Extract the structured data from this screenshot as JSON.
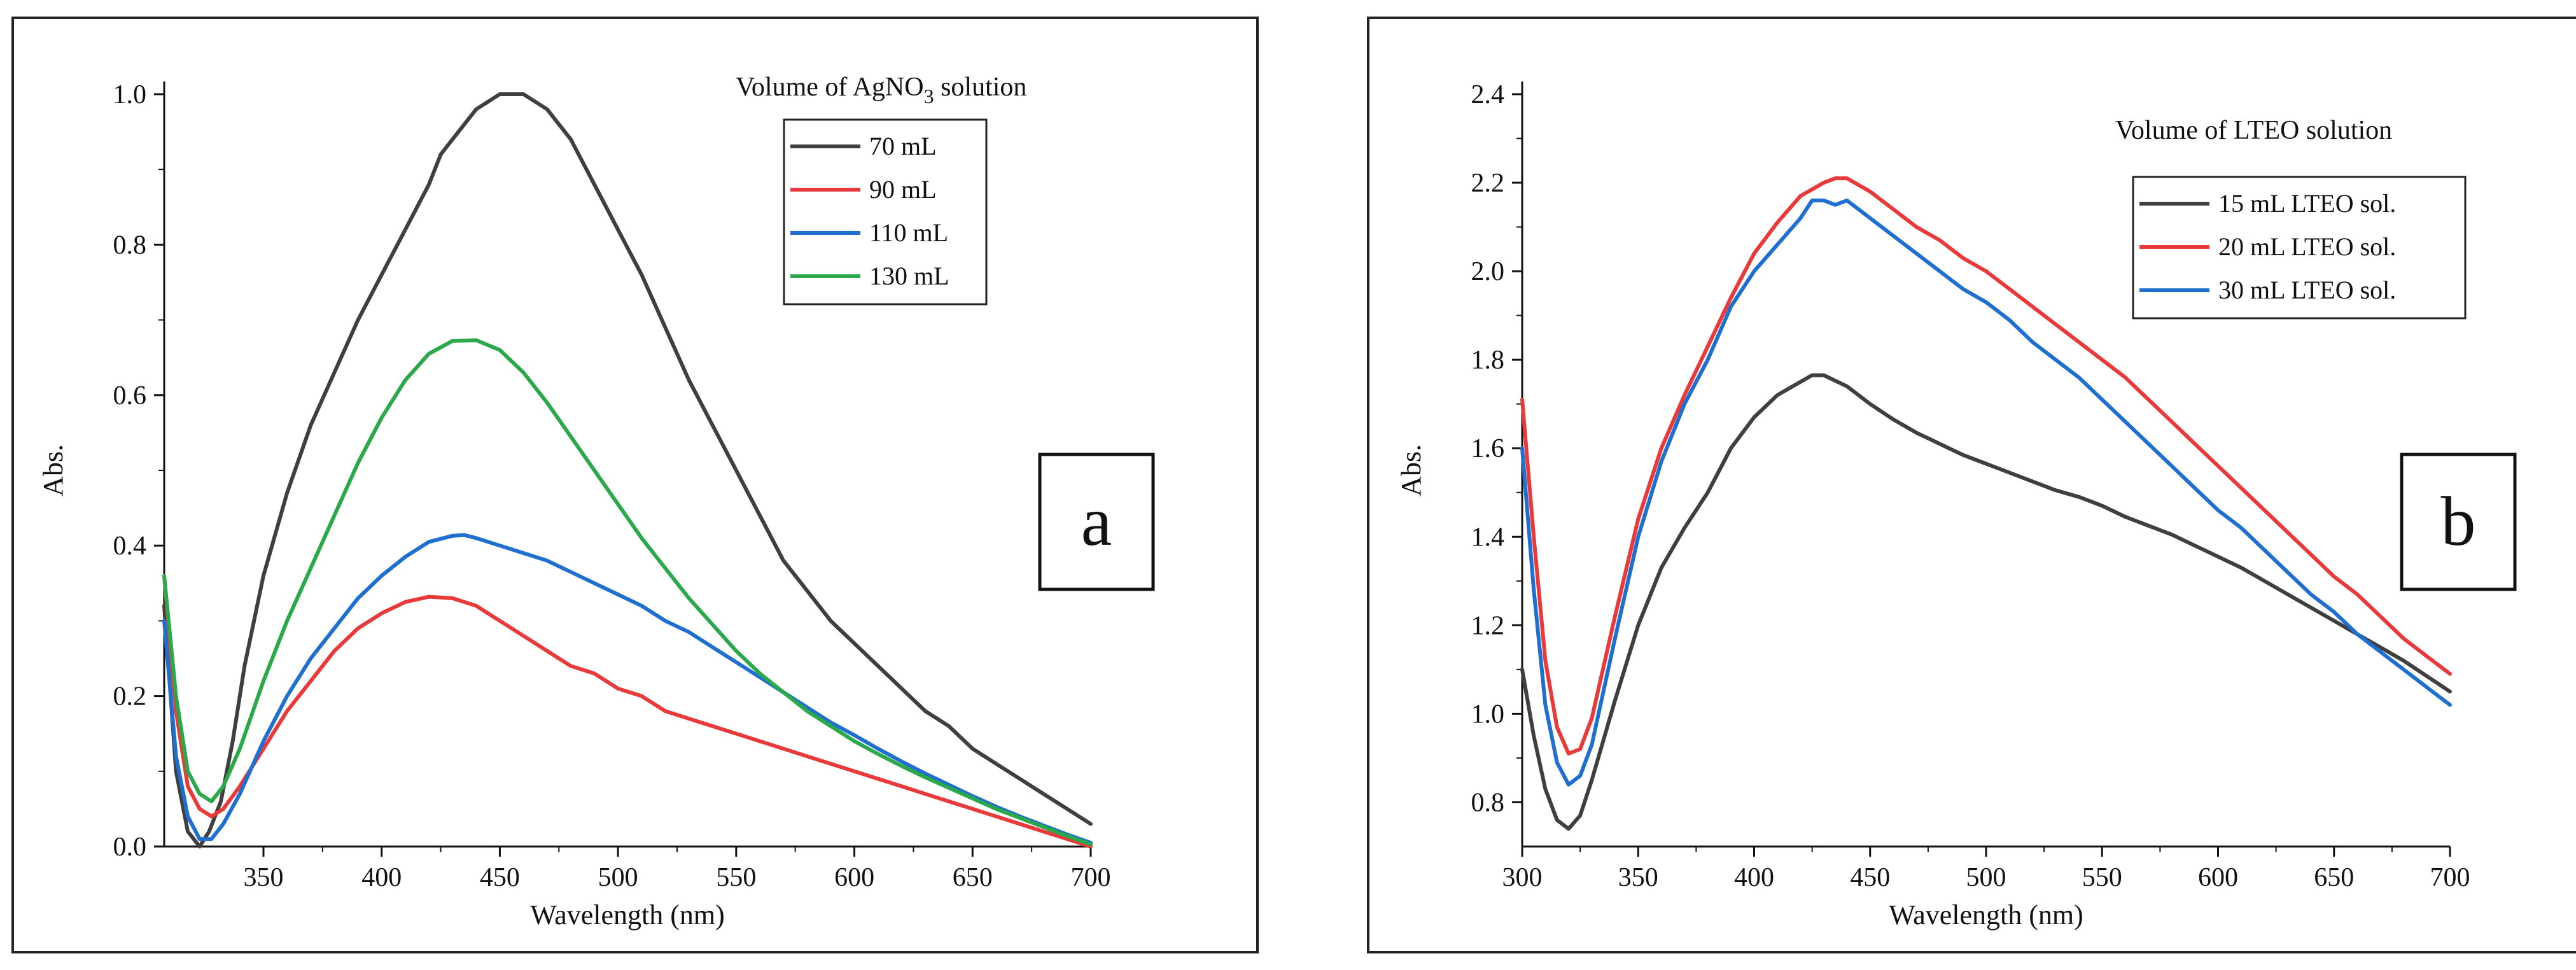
{
  "chart_data": [
    {
      "type": "line",
      "panel_letter": "a",
      "title": "",
      "xlabel": "Wavelength (nm)",
      "ylabel": "Abs.",
      "xlim": [
        308,
        700
      ],
      "ylim": [
        0.0,
        1.0
      ],
      "xticks": [
        350,
        400,
        450,
        500,
        550,
        600,
        650,
        700
      ],
      "yticks": [
        0.0,
        0.2,
        0.4,
        0.6,
        0.8,
        1.0
      ],
      "xtick_labels": [
        "350",
        "400",
        "450",
        "500",
        "550",
        "600",
        "650",
        "700"
      ],
      "ytick_labels": [
        "0.0",
        "0.2",
        "0.4",
        "0.6",
        "0.8",
        "1.0"
      ],
      "legend_title": "Volume of AgNO",
      "legend_title_sub": "3",
      "legend_title_suffix": " solution",
      "legend_position": "top-right",
      "panel_label_position": "right",
      "series": [
        {
          "name": "70 mL",
          "color": "#3f3f3f",
          "x": [
            308,
            313,
            318,
            323,
            327,
            332,
            337,
            342,
            350,
            360,
            370,
            380,
            390,
            400,
            410,
            420,
            425,
            430,
            440,
            450,
            460,
            470,
            480,
            490,
            500,
            510,
            520,
            530,
            540,
            550,
            560,
            570,
            580,
            590,
            600,
            610,
            620,
            630,
            640,
            650,
            660,
            670,
            680,
            690,
            700
          ],
          "y": [
            0.32,
            0.1,
            0.02,
            0.0,
            0.02,
            0.06,
            0.14,
            0.24,
            0.36,
            0.47,
            0.56,
            0.63,
            0.7,
            0.76,
            0.82,
            0.88,
            0.92,
            0.94,
            0.98,
            1.0,
            1.0,
            0.98,
            0.94,
            0.88,
            0.82,
            0.76,
            0.69,
            0.62,
            0.56,
            0.5,
            0.44,
            0.38,
            0.34,
            0.3,
            0.27,
            0.24,
            0.21,
            0.18,
            0.16,
            0.13,
            0.11,
            0.09,
            0.07,
            0.05,
            0.03
          ]
        },
        {
          "name": "90 mL",
          "color": "#e8393b",
          "x": [
            308,
            313,
            318,
            323,
            328,
            333,
            340,
            350,
            360,
            370,
            380,
            390,
            400,
            410,
            420,
            430,
            440,
            450,
            460,
            470,
            480,
            490,
            500,
            510,
            520,
            530,
            540,
            550,
            560,
            570,
            580,
            590,
            600,
            610,
            620,
            630,
            640,
            650,
            660,
            670,
            680,
            690,
            700
          ],
          "y": [
            0.36,
            0.18,
            0.08,
            0.05,
            0.04,
            0.05,
            0.08,
            0.13,
            0.18,
            0.22,
            0.26,
            0.29,
            0.31,
            0.325,
            0.332,
            0.33,
            0.32,
            0.3,
            0.28,
            0.26,
            0.24,
            0.23,
            0.21,
            0.2,
            0.18,
            0.17,
            0.16,
            0.15,
            0.14,
            0.13,
            0.12,
            0.11,
            0.1,
            0.09,
            0.08,
            0.07,
            0.06,
            0.05,
            0.04,
            0.03,
            0.02,
            0.01,
            0.0
          ]
        },
        {
          "name": "110 mL",
          "color": "#1f6fd1",
          "x": [
            308,
            313,
            318,
            323,
            328,
            333,
            340,
            350,
            360,
            370,
            380,
            390,
            400,
            410,
            420,
            430,
            435,
            440,
            450,
            460,
            470,
            480,
            490,
            500,
            510,
            520,
            530,
            540,
            550,
            560,
            570,
            580,
            590,
            600,
            610,
            620,
            630,
            640,
            650,
            660,
            670,
            680,
            690,
            700
          ],
          "y": [
            0.3,
            0.12,
            0.04,
            0.01,
            0.01,
            0.03,
            0.07,
            0.14,
            0.2,
            0.25,
            0.29,
            0.33,
            0.36,
            0.385,
            0.405,
            0.413,
            0.414,
            0.41,
            0.4,
            0.39,
            0.38,
            0.365,
            0.35,
            0.335,
            0.32,
            0.3,
            0.285,
            0.265,
            0.245,
            0.225,
            0.205,
            0.185,
            0.165,
            0.148,
            0.13,
            0.113,
            0.097,
            0.082,
            0.067,
            0.053,
            0.04,
            0.028,
            0.016,
            0.005
          ]
        },
        {
          "name": "130 mL",
          "color": "#2aa84a",
          "x": [
            308,
            313,
            318,
            323,
            328,
            333,
            340,
            350,
            360,
            370,
            380,
            390,
            400,
            410,
            420,
            430,
            440,
            450,
            460,
            470,
            480,
            490,
            500,
            510,
            520,
            530,
            540,
            550,
            560,
            570,
            580,
            590,
            600,
            610,
            620,
            630,
            640,
            650,
            660,
            670,
            680,
            690,
            700
          ],
          "y": [
            0.36,
            0.2,
            0.1,
            0.07,
            0.06,
            0.08,
            0.13,
            0.22,
            0.3,
            0.37,
            0.44,
            0.51,
            0.57,
            0.62,
            0.655,
            0.672,
            0.673,
            0.66,
            0.63,
            0.59,
            0.545,
            0.5,
            0.455,
            0.41,
            0.37,
            0.33,
            0.295,
            0.26,
            0.23,
            0.205,
            0.18,
            0.16,
            0.14,
            0.123,
            0.107,
            0.092,
            0.078,
            0.064,
            0.05,
            0.038,
            0.026,
            0.014,
            0.003
          ]
        }
      ]
    },
    {
      "type": "line",
      "panel_letter": "b",
      "title": "",
      "xlabel": "Wavelength (nm)",
      "ylabel": "Abs.",
      "xlim": [
        300,
        700
      ],
      "ylim": [
        0.7,
        2.4
      ],
      "xticks": [
        300,
        350,
        400,
        450,
        500,
        550,
        600,
        650,
        700
      ],
      "yticks": [
        0.8,
        1.0,
        1.2,
        1.4,
        1.6,
        1.8,
        2.0,
        2.2,
        2.4
      ],
      "xtick_labels": [
        "300",
        "350",
        "400",
        "450",
        "500",
        "550",
        "600",
        "650",
        "700"
      ],
      "ytick_labels": [
        "0.8",
        "1.0",
        "1.2",
        "1.4",
        "1.6",
        "1.8",
        "2.0",
        "2.2",
        "2.4"
      ],
      "legend_title": "Volume of LTEO solution",
      "legend_title_sub": "",
      "legend_title_suffix": "",
      "legend_position": "top-right",
      "panel_label_position": "right",
      "series": [
        {
          "name": "15 mL LTEO sol.",
          "color": "#3f3f3f",
          "x": [
            300,
            305,
            310,
            315,
            320,
            325,
            330,
            340,
            350,
            360,
            370,
            380,
            390,
            400,
            410,
            420,
            425,
            430,
            440,
            450,
            460,
            470,
            480,
            490,
            500,
            510,
            520,
            530,
            540,
            550,
            560,
            570,
            580,
            590,
            600,
            610,
            620,
            630,
            640,
            650,
            660,
            670,
            680,
            690,
            700
          ],
          "y": [
            1.1,
            0.95,
            0.83,
            0.76,
            0.74,
            0.77,
            0.85,
            1.03,
            1.2,
            1.33,
            1.42,
            1.5,
            1.6,
            1.67,
            1.72,
            1.75,
            1.765,
            1.765,
            1.74,
            1.7,
            1.665,
            1.635,
            1.61,
            1.585,
            1.565,
            1.545,
            1.525,
            1.505,
            1.49,
            1.47,
            1.445,
            1.425,
            1.405,
            1.38,
            1.355,
            1.33,
            1.3,
            1.27,
            1.24,
            1.21,
            1.18,
            1.15,
            1.12,
            1.085,
            1.05
          ]
        },
        {
          "name": "20 mL LTEO sol.",
          "color": "#e8393b",
          "x": [
            300,
            305,
            310,
            315,
            320,
            325,
            330,
            340,
            350,
            360,
            370,
            380,
            390,
            400,
            410,
            420,
            430,
            435,
            440,
            450,
            460,
            470,
            480,
            490,
            500,
            510,
            520,
            530,
            540,
            550,
            560,
            570,
            580,
            590,
            600,
            610,
            620,
            630,
            640,
            650,
            660,
            670,
            680,
            690,
            700
          ],
          "y": [
            1.71,
            1.4,
            1.12,
            0.97,
            0.91,
            0.92,
            0.99,
            1.22,
            1.44,
            1.6,
            1.72,
            1.83,
            1.94,
            2.04,
            2.11,
            2.17,
            2.2,
            2.21,
            2.21,
            2.18,
            2.14,
            2.1,
            2.07,
            2.03,
            2.0,
            1.96,
            1.92,
            1.88,
            1.84,
            1.8,
            1.76,
            1.71,
            1.66,
            1.61,
            1.56,
            1.51,
            1.46,
            1.41,
            1.36,
            1.31,
            1.27,
            1.22,
            1.17,
            1.13,
            1.09
          ]
        },
        {
          "name": "30 mL LTEO sol.",
          "color": "#1f6fd1",
          "x": [
            300,
            305,
            310,
            315,
            320,
            325,
            330,
            340,
            350,
            360,
            370,
            380,
            390,
            400,
            410,
            420,
            425,
            430,
            435,
            440,
            450,
            460,
            470,
            480,
            490,
            500,
            510,
            520,
            530,
            540,
            550,
            560,
            570,
            580,
            590,
            600,
            610,
            620,
            630,
            640,
            650,
            660,
            670,
            680,
            690,
            700
          ],
          "y": [
            1.6,
            1.28,
            1.02,
            0.89,
            0.84,
            0.86,
            0.93,
            1.17,
            1.4,
            1.57,
            1.7,
            1.8,
            1.92,
            2.0,
            2.06,
            2.12,
            2.16,
            2.16,
            2.15,
            2.16,
            2.12,
            2.08,
            2.04,
            2.0,
            1.96,
            1.93,
            1.89,
            1.84,
            1.8,
            1.76,
            1.71,
            1.66,
            1.61,
            1.56,
            1.51,
            1.46,
            1.42,
            1.37,
            1.32,
            1.27,
            1.23,
            1.18,
            1.14,
            1.1,
            1.06,
            1.02
          ]
        }
      ]
    }
  ]
}
